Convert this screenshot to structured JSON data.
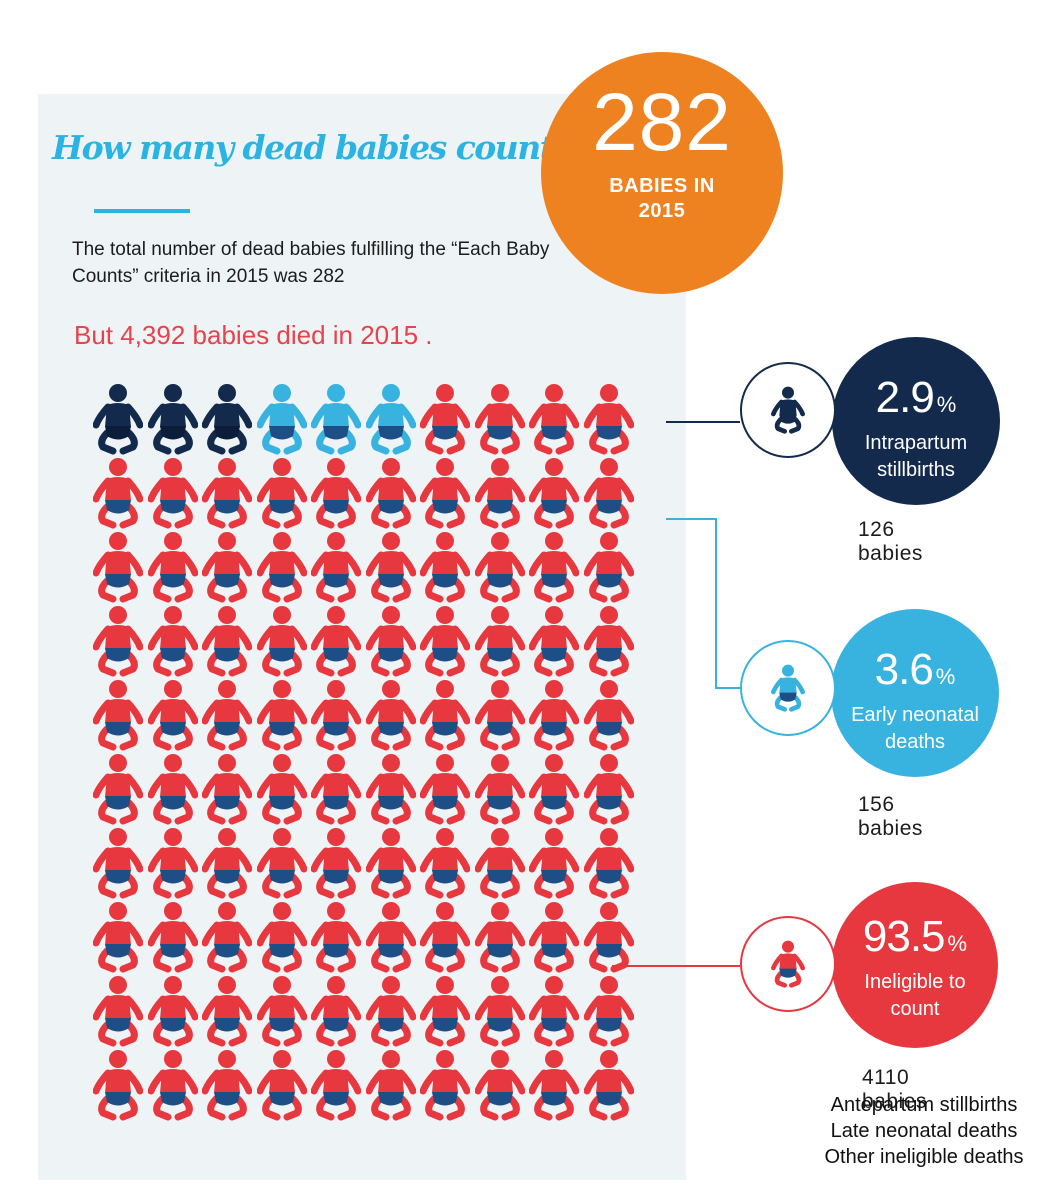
{
  "title": "How many dead babies count?",
  "intro": "The total number of dead babies fulfilling the “Each Baby Counts” criteria in 2015 was 282",
  "died_text": "But 4,392 babies died in 2015 .",
  "total": {
    "number": "282",
    "label": "BABIES IN 2015",
    "color": "#ee8221"
  },
  "chart_data": {
    "type": "pictogram",
    "rows": 10,
    "cols": 10,
    "icon": "baby-icon",
    "series": [
      {
        "name": "Intrapartum stillbirths",
        "percent": 2.9,
        "babies": 126,
        "icons": 3,
        "color": "#132a4d"
      },
      {
        "name": "Early neonatal deaths",
        "percent": 3.6,
        "babies": 156,
        "icons": 3,
        "color": "#38b3e0"
      },
      {
        "name": "Ineligible to count",
        "percent": 93.5,
        "babies": 4110,
        "icons": 94,
        "color": "#e8383f"
      }
    ]
  },
  "categories": [
    {
      "pct": "2.9",
      "pct_symbol": "%",
      "name": "Intrapartum stillbirths",
      "count": "126 babies",
      "color": "#132a4d"
    },
    {
      "pct": "3.6",
      "pct_symbol": "%",
      "name": "Early neonatal deaths",
      "count": "156 babies",
      "color": "#38b3e0"
    },
    {
      "pct": "93.5",
      "pct_symbol": "%",
      "name": "Ineligible to count",
      "count": "4110 babies",
      "color": "#e8383f"
    }
  ],
  "ineligible_notes": [
    "Antepartum stillbirths",
    "Late neonatal deaths",
    "Other ineligible deaths"
  ]
}
